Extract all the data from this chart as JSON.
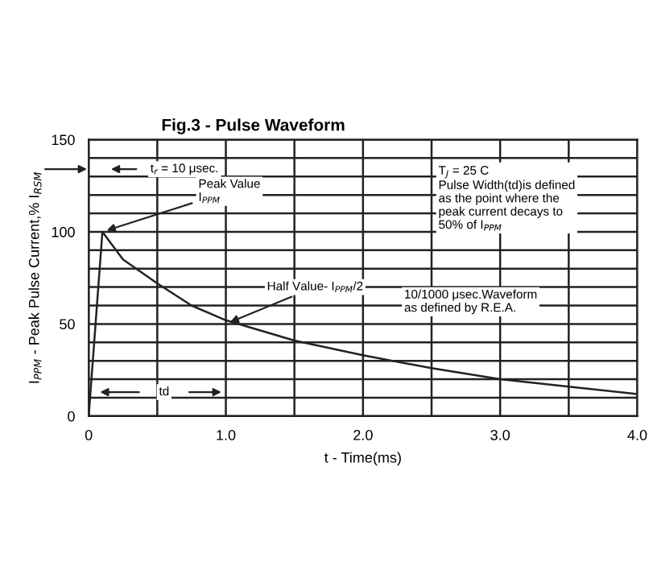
{
  "chart_data": {
    "type": "line",
    "title": "Fig.3 - Pulse Waveform",
    "xlabel": "t - Time(ms)",
    "ylabel": "I$_{PPM}$ - Peak Pulse Current,% I$_{RSM}$",
    "x": [
      0,
      0.1,
      0.25,
      0.5,
      0.75,
      1.0,
      1.5,
      2.0,
      2.5,
      3.0,
      3.5,
      4.0
    ],
    "series": [
      {
        "color": "#222222",
        "values": [
          0,
          100,
          85,
          72,
          60,
          52,
          41,
          33,
          26,
          20,
          16,
          12
        ]
      }
    ],
    "xlim": [
      0,
      4
    ],
    "ylim": [
      0,
      150
    ],
    "xticks": [
      0,
      {
        "value": 0.5,
        "label": null
      },
      {
        "value": 1,
        "label": "1.0"
      },
      {
        "value": 1.5,
        "label": null
      },
      {
        "value": 2,
        "label": "2.0"
      },
      {
        "value": 2.5,
        "label": null
      },
      {
        "value": 3,
        "label": "3.0"
      },
      {
        "value": 3.5,
        "label": null
      },
      {
        "value": 4,
        "label": "4.0"
      }
    ],
    "yticks": [
      0,
      {
        "value": 10,
        "label": null
      },
      {
        "value": 20,
        "label": null
      },
      {
        "value": 30,
        "label": null
      },
      {
        "value": 40,
        "label": null
      },
      50,
      {
        "value": 60,
        "label": null
      },
      {
        "value": 70,
        "label": null
      },
      {
        "value": 80,
        "label": null
      },
      {
        "value": 90,
        "label": null
      },
      100,
      {
        "value": 110,
        "label": null
      },
      {
        "value": 120,
        "label": null
      },
      {
        "value": 130,
        "label": null
      },
      {
        "value": 140,
        "label": null
      },
      150
    ],
    "grid": true,
    "marker": "none",
    "line_style": "solid",
    "annotations": [
      {
        "text": "Peak Value\nI$_{PPM}$",
        "x": 0.1,
        "y": 100
      },
      {
        "text": "Half Value- I$_{PPM}$/2",
        "x": 1.0,
        "y": 50
      },
      "t$_{r}$ = 10 μsec.",
      "T$_{J}$ = 25 C\nPulse Width(td)is defined\nas the point where the\npeak current decays to\n50% of I$_{PPM}$",
      "10/1000 μsec.Waveform\nas defined by R.E.A.",
      "td"
    ]
  }
}
